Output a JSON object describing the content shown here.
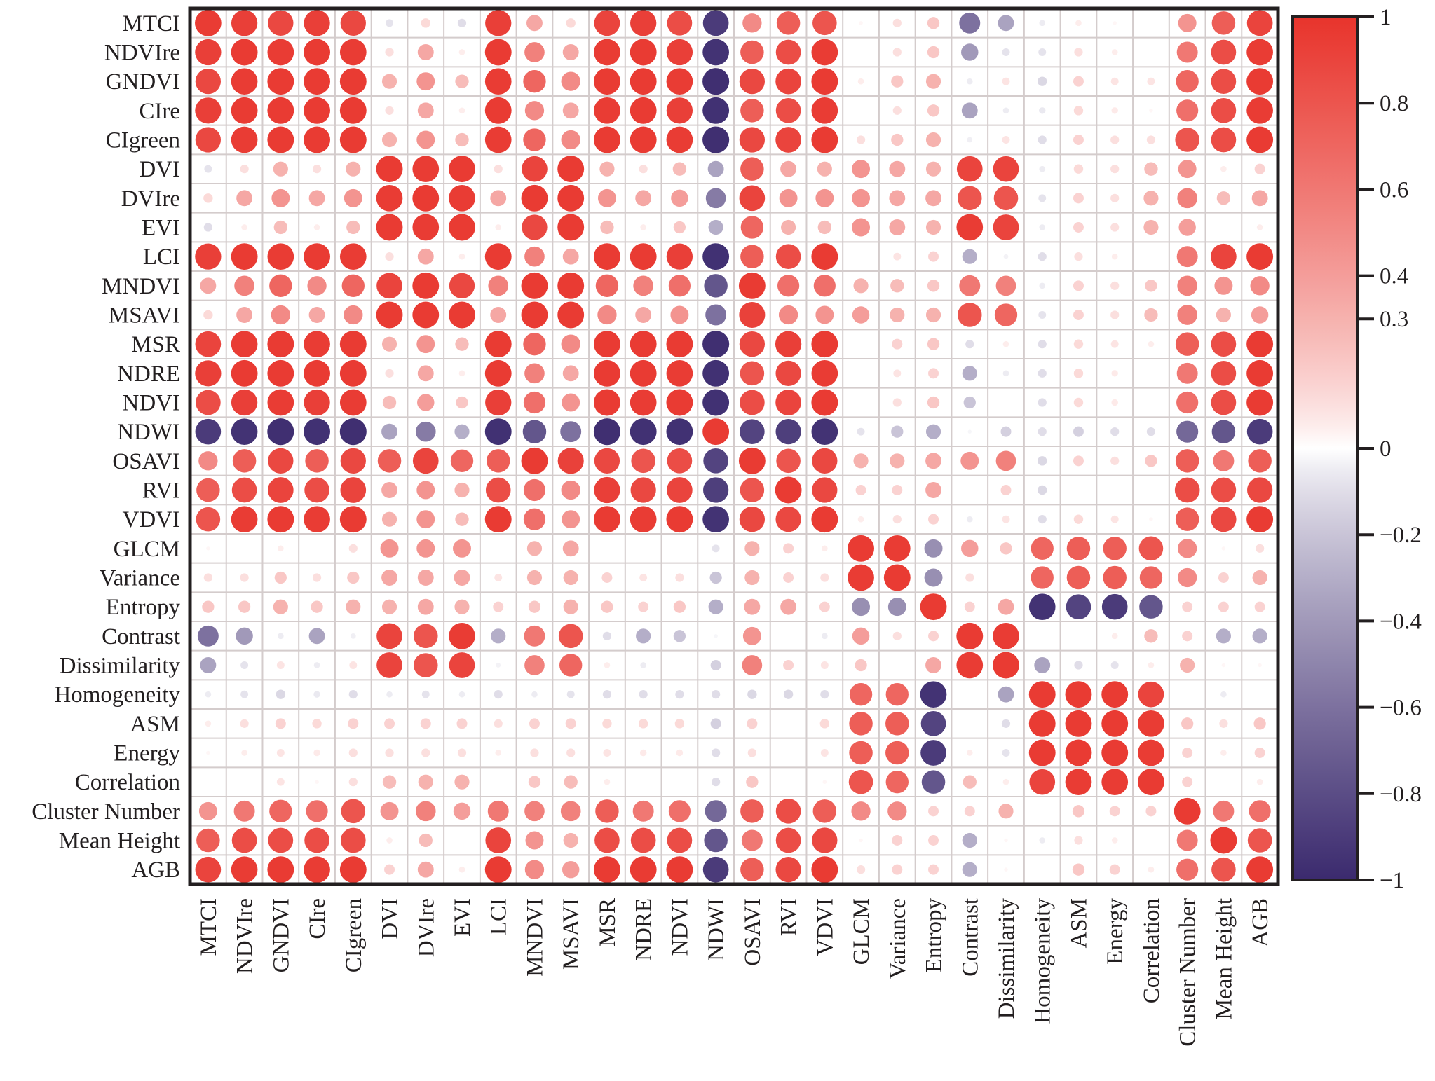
{
  "chart_data": {
    "type": "heatmap",
    "subtype": "correlation-circle-matrix",
    "title": "",
    "variables": [
      "MTCI",
      "NDVIre",
      "GNDVI",
      "CIre",
      "CIgreen",
      "DVI",
      "DVIre",
      "EVI",
      "LCI",
      "MNDVI",
      "MSAVI",
      "MSR",
      "NDRE",
      "NDVI",
      "NDWI",
      "OSAVI",
      "RVI",
      "VDVI",
      "GLCM",
      "Variance",
      "Entropy",
      "Contrast",
      "Dissimilarity",
      "Homogeneity",
      "ASM",
      "Energy",
      "Correlation",
      "Cluster Number",
      "Mean Height",
      "AGB"
    ],
    "colorbar": {
      "range": [
        -1,
        1
      ],
      "ticks": [
        1,
        0.8,
        0.6,
        0.4,
        0.3,
        0,
        -0.2,
        -0.4,
        -0.6,
        -0.8,
        -1
      ],
      "tick_labels": [
        "1",
        "0.8",
        "0.6",
        "0.4",
        "0.3",
        "0",
        "−0.2",
        "−0.4",
        "−0.6",
        "−0.8",
        "−1"
      ],
      "positive_color": "#e8342c",
      "neutral_color": "#ffffff",
      "negative_color": "#3b2a6e"
    },
    "matrix": [
      [
        0.95,
        0.93,
        0.88,
        0.93,
        0.88,
        -0.08,
        0.12,
        -0.1,
        0.93,
        0.35,
        0.12,
        0.9,
        0.93,
        0.85,
        -0.9,
        0.5,
        0.75,
        0.8,
        0.02,
        0.1,
        0.2,
        -0.6,
        -0.35,
        -0.05,
        0.05,
        0.02,
        0.0,
        0.45,
        0.75,
        0.9
      ],
      [
        0.93,
        0.96,
        0.95,
        0.96,
        0.95,
        0.1,
        0.35,
        0.05,
        0.96,
        0.55,
        0.35,
        0.95,
        0.96,
        0.93,
        -0.95,
        0.75,
        0.85,
        0.95,
        0.0,
        0.1,
        0.2,
        -0.4,
        -0.08,
        -0.08,
        0.1,
        0.05,
        0.0,
        0.6,
        0.85,
        0.95
      ],
      [
        0.88,
        0.95,
        0.96,
        0.96,
        0.96,
        0.3,
        0.45,
        0.25,
        0.95,
        0.7,
        0.5,
        0.96,
        0.96,
        0.95,
        -0.97,
        0.88,
        0.9,
        0.96,
        0.05,
        0.2,
        0.3,
        -0.05,
        0.08,
        -0.12,
        0.15,
        0.08,
        0.08,
        0.7,
        0.85,
        0.96
      ],
      [
        0.93,
        0.96,
        0.96,
        0.96,
        0.96,
        0.1,
        0.35,
        0.05,
        0.96,
        0.5,
        0.35,
        0.95,
        0.96,
        0.93,
        -0.96,
        0.75,
        0.85,
        0.95,
        0.0,
        0.1,
        0.2,
        -0.35,
        -0.05,
        -0.06,
        0.12,
        0.06,
        0.02,
        0.65,
        0.85,
        0.95
      ],
      [
        0.88,
        0.95,
        0.96,
        0.96,
        0.96,
        0.3,
        0.45,
        0.25,
        0.95,
        0.7,
        0.5,
        0.96,
        0.96,
        0.95,
        -0.97,
        0.88,
        0.9,
        0.96,
        0.1,
        0.2,
        0.3,
        -0.04,
        0.08,
        -0.1,
        0.15,
        0.1,
        0.1,
        0.8,
        0.85,
        0.96
      ],
      [
        -0.08,
        0.1,
        0.3,
        0.1,
        0.3,
        0.96,
        0.95,
        0.96,
        0.1,
        0.9,
        0.96,
        0.3,
        0.1,
        0.25,
        -0.35,
        0.75,
        0.35,
        0.3,
        0.45,
        0.35,
        0.3,
        0.9,
        0.9,
        -0.05,
        0.12,
        0.1,
        0.25,
        0.45,
        0.05,
        0.15
      ],
      [
        0.12,
        0.35,
        0.45,
        0.35,
        0.45,
        0.95,
        0.96,
        0.95,
        0.35,
        0.96,
        0.96,
        0.45,
        0.35,
        0.4,
        -0.55,
        0.9,
        0.45,
        0.45,
        0.45,
        0.35,
        0.35,
        0.8,
        0.8,
        -0.08,
        0.15,
        0.1,
        0.3,
        0.55,
        0.25,
        0.35
      ],
      [
        -0.1,
        0.05,
        0.25,
        0.05,
        0.25,
        0.96,
        0.95,
        0.96,
        0.05,
        0.88,
        0.96,
        0.25,
        0.05,
        0.2,
        -0.3,
        0.7,
        0.3,
        0.25,
        0.45,
        0.35,
        0.3,
        0.95,
        0.9,
        -0.05,
        0.15,
        0.1,
        0.3,
        0.4,
        0.0,
        0.05
      ],
      [
        0.93,
        0.96,
        0.95,
        0.96,
        0.95,
        0.1,
        0.35,
        0.05,
        0.96,
        0.55,
        0.35,
        0.96,
        0.96,
        0.93,
        -0.96,
        0.75,
        0.85,
        0.96,
        0.0,
        0.08,
        0.15,
        -0.3,
        -0.03,
        -0.1,
        0.1,
        0.05,
        0.0,
        0.6,
        0.9,
        0.96
      ],
      [
        0.35,
        0.55,
        0.7,
        0.5,
        0.7,
        0.9,
        0.96,
        0.88,
        0.55,
        0.96,
        0.96,
        0.7,
        0.55,
        0.65,
        -0.75,
        0.96,
        0.65,
        0.65,
        0.3,
        0.25,
        0.2,
        0.6,
        0.55,
        -0.05,
        0.15,
        0.1,
        0.2,
        0.55,
        0.45,
        0.5
      ],
      [
        0.12,
        0.35,
        0.5,
        0.35,
        0.5,
        0.96,
        0.96,
        0.96,
        0.35,
        0.96,
        0.96,
        0.5,
        0.35,
        0.45,
        -0.6,
        0.92,
        0.5,
        0.45,
        0.4,
        0.3,
        0.3,
        0.8,
        0.7,
        -0.08,
        0.15,
        0.1,
        0.25,
        0.55,
        0.3,
        0.4
      ],
      [
        0.9,
        0.95,
        0.96,
        0.95,
        0.96,
        0.3,
        0.45,
        0.25,
        0.96,
        0.7,
        0.5,
        0.96,
        0.96,
        0.96,
        -0.97,
        0.88,
        0.93,
        0.96,
        0.0,
        0.15,
        0.2,
        -0.1,
        0.05,
        -0.1,
        0.12,
        0.08,
        0.05,
        0.75,
        0.85,
        0.96
      ],
      [
        0.93,
        0.96,
        0.96,
        0.96,
        0.96,
        0.1,
        0.35,
        0.05,
        0.96,
        0.55,
        0.35,
        0.96,
        0.96,
        0.95,
        -0.96,
        0.8,
        0.88,
        0.95,
        0.0,
        0.08,
        0.15,
        -0.3,
        -0.05,
        -0.1,
        0.12,
        0.06,
        0.0,
        0.6,
        0.85,
        0.96
      ],
      [
        0.85,
        0.93,
        0.95,
        0.93,
        0.95,
        0.25,
        0.4,
        0.2,
        0.93,
        0.65,
        0.45,
        0.96,
        0.95,
        0.96,
        -0.96,
        0.85,
        0.9,
        0.96,
        0.0,
        0.1,
        0.2,
        -0.2,
        0.0,
        -0.1,
        0.12,
        0.06,
        0.0,
        0.65,
        0.85,
        0.96
      ],
      [
        -0.9,
        -0.95,
        -0.97,
        -0.96,
        -0.97,
        -0.35,
        -0.55,
        -0.3,
        -0.96,
        -0.75,
        -0.6,
        -0.97,
        -0.96,
        -0.96,
        0.96,
        -0.85,
        -0.88,
        -0.95,
        -0.08,
        -0.2,
        -0.3,
        -0.02,
        -0.15,
        -0.1,
        -0.15,
        -0.1,
        -0.1,
        -0.65,
        -0.75,
        -0.9
      ],
      [
        0.5,
        0.75,
        0.88,
        0.75,
        0.88,
        0.75,
        0.9,
        0.7,
        0.75,
        0.96,
        0.92,
        0.88,
        0.8,
        0.85,
        -0.85,
        0.96,
        0.8,
        0.88,
        0.3,
        0.3,
        0.35,
        0.45,
        0.55,
        -0.12,
        0.15,
        0.1,
        0.2,
        0.75,
        0.6,
        0.75
      ],
      [
        0.75,
        0.85,
        0.9,
        0.85,
        0.9,
        0.35,
        0.45,
        0.3,
        0.85,
        0.65,
        0.5,
        0.93,
        0.88,
        0.9,
        -0.88,
        0.8,
        0.96,
        0.88,
        0.15,
        0.15,
        0.35,
        0.0,
        0.15,
        -0.12,
        0.0,
        0.0,
        0.0,
        0.85,
        0.85,
        0.88
      ],
      [
        0.8,
        0.95,
        0.96,
        0.95,
        0.96,
        0.3,
        0.45,
        0.25,
        0.96,
        0.65,
        0.45,
        0.96,
        0.95,
        0.96,
        -0.95,
        0.88,
        0.88,
        0.96,
        0.05,
        0.1,
        0.15,
        -0.05,
        0.08,
        -0.1,
        0.12,
        0.08,
        0.02,
        0.75,
        0.88,
        0.96
      ],
      [
        0.02,
        0.0,
        0.05,
        0.0,
        0.1,
        0.45,
        0.45,
        0.45,
        0.0,
        0.3,
        0.35,
        0.0,
        0.0,
        0.0,
        -0.08,
        0.3,
        0.15,
        0.05,
        0.96,
        0.95,
        -0.45,
        0.4,
        0.2,
        0.7,
        0.75,
        0.75,
        0.8,
        0.5,
        0.02,
        0.1
      ],
      [
        0.1,
        0.1,
        0.2,
        0.1,
        0.2,
        0.35,
        0.35,
        0.35,
        0.08,
        0.3,
        0.3,
        0.15,
        0.08,
        0.1,
        -0.2,
        0.3,
        0.15,
        0.1,
        0.95,
        0.96,
        -0.45,
        0.1,
        0.0,
        0.7,
        0.75,
        0.75,
        0.7,
        0.5,
        0.15,
        0.3
      ],
      [
        0.2,
        0.2,
        0.3,
        0.2,
        0.3,
        0.3,
        0.35,
        0.3,
        0.15,
        0.2,
        0.3,
        0.2,
        0.15,
        0.2,
        -0.3,
        0.35,
        0.35,
        0.15,
        -0.45,
        -0.45,
        0.96,
        0.15,
        0.35,
        -0.95,
        -0.85,
        -0.9,
        -0.75,
        0.15,
        0.15,
        0.15
      ],
      [
        -0.6,
        -0.4,
        -0.05,
        -0.35,
        -0.04,
        0.9,
        0.8,
        0.95,
        -0.3,
        0.6,
        0.8,
        -0.1,
        -0.3,
        -0.2,
        -0.02,
        0.45,
        0.0,
        -0.05,
        0.4,
        0.1,
        0.15,
        0.96,
        0.95,
        0.0,
        0.0,
        0.05,
        0.25,
        0.15,
        -0.3,
        -0.3
      ],
      [
        -0.35,
        -0.08,
        0.08,
        -0.05,
        0.08,
        0.9,
        0.8,
        0.9,
        -0.03,
        0.55,
        0.7,
        0.05,
        -0.05,
        0.0,
        -0.15,
        0.55,
        0.15,
        0.08,
        0.2,
        0.0,
        0.35,
        0.95,
        0.96,
        -0.35,
        -0.1,
        -0.08,
        0.05,
        0.3,
        0.02,
        0.02
      ],
      [
        -0.05,
        -0.08,
        -0.12,
        -0.06,
        -0.1,
        -0.05,
        -0.08,
        -0.05,
        -0.1,
        -0.05,
        -0.08,
        -0.1,
        -0.1,
        -0.1,
        -0.1,
        -0.12,
        -0.12,
        -0.1,
        0.7,
        0.7,
        -0.95,
        0.0,
        -0.35,
        0.96,
        0.96,
        0.96,
        0.9,
        0.0,
        -0.05,
        0.0
      ],
      [
        0.05,
        0.1,
        0.15,
        0.12,
        0.15,
        0.15,
        0.15,
        0.15,
        0.1,
        0.15,
        0.15,
        0.12,
        0.12,
        0.12,
        -0.15,
        0.15,
        0.0,
        0.12,
        0.75,
        0.75,
        -0.85,
        0.0,
        -0.1,
        0.96,
        0.96,
        0.96,
        0.95,
        0.2,
        0.1,
        0.2
      ],
      [
        0.02,
        0.05,
        0.08,
        0.06,
        0.1,
        0.1,
        0.1,
        0.1,
        0.05,
        0.1,
        0.1,
        0.08,
        0.06,
        0.06,
        -0.1,
        0.1,
        0.0,
        0.08,
        0.75,
        0.75,
        -0.9,
        0.05,
        -0.08,
        0.96,
        0.96,
        0.96,
        0.95,
        0.15,
        0.05,
        0.15
      ],
      [
        0.0,
        0.0,
        0.08,
        0.02,
        0.1,
        0.25,
        0.3,
        0.3,
        0.0,
        0.2,
        0.25,
        0.05,
        0.0,
        0.0,
        -0.1,
        0.2,
        0.0,
        0.02,
        0.8,
        0.7,
        -0.75,
        0.25,
        0.05,
        0.9,
        0.95,
        0.95,
        0.96,
        0.15,
        0.0,
        0.05
      ],
      [
        0.45,
        0.6,
        0.7,
        0.65,
        0.8,
        0.45,
        0.55,
        0.4,
        0.6,
        0.55,
        0.55,
        0.75,
        0.6,
        0.65,
        -0.65,
        0.75,
        0.85,
        0.75,
        0.5,
        0.5,
        0.15,
        0.15,
        0.3,
        0.0,
        0.2,
        0.15,
        0.15,
        0.96,
        0.6,
        0.65
      ],
      [
        0.75,
        0.85,
        0.85,
        0.85,
        0.85,
        0.05,
        0.25,
        0.0,
        0.9,
        0.45,
        0.3,
        0.85,
        0.85,
        0.85,
        -0.75,
        0.6,
        0.85,
        0.88,
        0.02,
        0.15,
        0.15,
        -0.3,
        0.02,
        -0.05,
        0.1,
        0.05,
        0.0,
        0.6,
        0.96,
        0.8
      ],
      [
        0.9,
        0.95,
        0.96,
        0.95,
        0.96,
        0.15,
        0.35,
        0.05,
        0.96,
        0.5,
        0.4,
        0.96,
        0.96,
        0.96,
        -0.9,
        0.75,
        0.88,
        0.96,
        0.1,
        0.15,
        0.15,
        -0.3,
        0.02,
        0.0,
        0.2,
        0.15,
        0.05,
        0.65,
        0.8,
        0.96
      ]
    ]
  }
}
